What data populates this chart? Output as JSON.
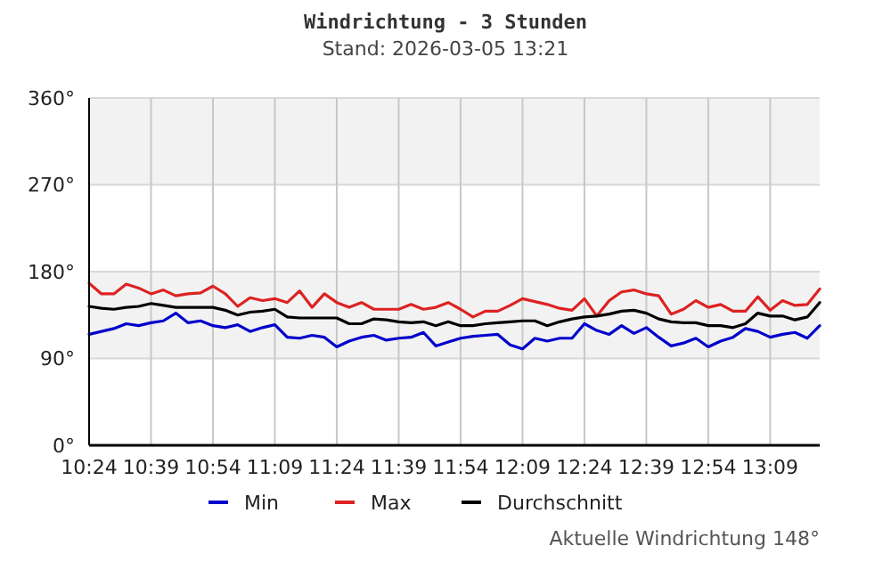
{
  "chart_data": {
    "type": "line",
    "title": "Windrichtung - 3 Stunden",
    "subtitle": "Stand: 2026-03-05 13:21",
    "annotations": [
      "Aktuelle Windrichtung 148°"
    ],
    "x": [
      10.4,
      10.45,
      10.5,
      10.55,
      10.6,
      10.65,
      10.7,
      10.75,
      10.8,
      10.85,
      10.9,
      10.95,
      11.0,
      11.05,
      11.1,
      11.15,
      11.2,
      11.25,
      11.3,
      11.35,
      11.4,
      11.45,
      11.5,
      11.55,
      11.6,
      11.65,
      11.7,
      11.75,
      11.8,
      11.85,
      11.9,
      11.95,
      12.0,
      12.05,
      12.1,
      12.15,
      12.2,
      12.25,
      12.3,
      12.35,
      12.4,
      12.45,
      12.5,
      12.55,
      12.6,
      12.65,
      12.7,
      12.75,
      12.8,
      12.85,
      12.9,
      12.95,
      13.0,
      13.05,
      13.1,
      13.15,
      13.2,
      13.25,
      13.3,
      13.35
    ],
    "series": [
      {
        "name": "Min",
        "color": "#0000cc",
        "values": [
          115,
          118,
          121,
          126,
          124,
          127,
          129,
          137,
          127,
          129,
          124,
          122,
          125,
          118,
          122,
          125,
          112,
          111,
          114,
          112,
          102,
          108,
          112,
          114,
          109,
          111,
          112,
          117,
          103,
          107,
          111,
          113,
          114,
          115,
          104,
          100,
          111,
          108,
          111,
          111,
          126,
          119,
          115,
          124,
          116,
          122,
          112,
          103,
          106,
          111,
          102,
          108,
          112,
          121,
          118,
          112,
          115,
          117,
          111,
          124
        ]
      },
      {
        "name": "Max",
        "color": "#dd2222",
        "values": [
          168,
          157,
          157,
          167,
          163,
          157,
          161,
          155,
          157,
          158,
          165,
          157,
          144,
          153,
          150,
          152,
          148,
          160,
          143,
          157,
          148,
          143,
          148,
          141,
          141,
          141,
          146,
          141,
          143,
          148,
          141,
          133,
          139,
          139,
          145,
          152,
          149,
          146,
          142,
          140,
          152,
          134,
          150,
          159,
          161,
          157,
          155,
          136,
          141,
          150,
          143,
          146,
          139,
          139,
          154,
          140,
          150,
          145,
          146,
          162
        ]
      },
      {
        "name": "Durchschnitt",
        "color": "#000000",
        "values": [
          144,
          142,
          141,
          143,
          144,
          147,
          145,
          143,
          143,
          143,
          143,
          140,
          135,
          138,
          139,
          141,
          133,
          132,
          132,
          132,
          132,
          126,
          126,
          131,
          130,
          128,
          127,
          128,
          124,
          128,
          124,
          124,
          126,
          127,
          128,
          129,
          129,
          124,
          128,
          131,
          133,
          134,
          136,
          139,
          140,
          137,
          131,
          128,
          127,
          127,
          124,
          124,
          122,
          126,
          137,
          134,
          134,
          130,
          133,
          148
        ]
      }
    ],
    "xlim": [
      10.4,
      13.35
    ],
    "xticks": [
      {
        "value": 10.4,
        "label": "10:24"
      },
      {
        "value": 10.65,
        "label": "10:39"
      },
      {
        "value": 10.9,
        "label": "10:54"
      },
      {
        "value": 11.15,
        "label": "11:09"
      },
      {
        "value": 11.4,
        "label": "11:24"
      },
      {
        "value": 11.65,
        "label": "11:39"
      },
      {
        "value": 11.9,
        "label": "11:54"
      },
      {
        "value": 12.15,
        "label": "12:09"
      },
      {
        "value": 12.4,
        "label": "12:24"
      },
      {
        "value": 12.65,
        "label": "12:39"
      },
      {
        "value": 12.9,
        "label": "12:54"
      },
      {
        "value": 13.15,
        "label": "13:09"
      }
    ],
    "ylim": [
      0,
      360
    ],
    "yticks": [
      {
        "value": 0,
        "label": "0°"
      },
      {
        "value": 90,
        "label": "90°"
      },
      {
        "value": 180,
        "label": "180°"
      },
      {
        "value": 270,
        "label": "270°"
      },
      {
        "value": 360,
        "label": "360°"
      }
    ],
    "bands": [
      {
        "axis": "y",
        "from": 90,
        "to": 180,
        "color": "#f2f2f2"
      },
      {
        "axis": "y",
        "from": 270,
        "to": 360,
        "color": "#f2f2f2"
      }
    ],
    "grid": true,
    "legend": "bottom",
    "marker": "none",
    "line_style": "solid"
  }
}
